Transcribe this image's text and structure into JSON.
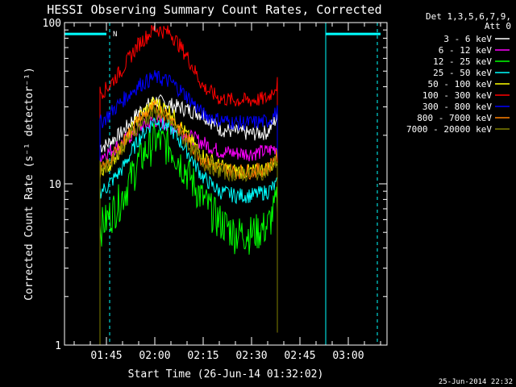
{
  "chart_data": {
    "type": "line",
    "title": "HESSI Observing Summary Count Rates, Corrected",
    "xlabel": "Start Time (26-Jun-14 01:32:02)",
    "ylabel": "Corrected Count Rate (s⁻¹ detector⁻¹)",
    "y_scale": "log",
    "ylim": [
      1,
      100
    ],
    "xlim": [
      "01:32",
      "03:12"
    ],
    "x_ticks": [
      "01:45",
      "02:00",
      "02:15",
      "02:30",
      "02:45",
      "03:00"
    ],
    "y_ticks": [
      "1",
      "10",
      "100"
    ],
    "footer": "25-Jun-2014 22:32",
    "legend": {
      "placement": "right",
      "header": [
        "Det 1,3,5,6,7,9,",
        "Att 0"
      ]
    },
    "series": [
      {
        "name": "3 - 6 keV",
        "color": "#ffffff",
        "x": [
          "01:43",
          "01:45",
          "01:50",
          "01:55",
          "02:00",
          "02:05",
          "02:10",
          "02:15",
          "02:20",
          "02:25",
          "02:30",
          "02:35",
          "02:38"
        ],
        "y": [
          17,
          17.5,
          21,
          28,
          33,
          31,
          29,
          27,
          22,
          21,
          20.5,
          21,
          26
        ]
      },
      {
        "name": "6 - 12 keV",
        "color": "#ff00ff",
        "x": [
          "01:43",
          "01:45",
          "01:50",
          "01:55",
          "02:00",
          "02:05",
          "02:10",
          "02:15",
          "02:20",
          "02:25",
          "02:30",
          "02:35",
          "02:38"
        ],
        "y": [
          15,
          15.5,
          18,
          22,
          25,
          23,
          20,
          18,
          16,
          15.5,
          15.5,
          16,
          17
        ]
      },
      {
        "name": "12 - 25 keV",
        "color": "#00ff00",
        "x": [
          "01:43",
          "01:45",
          "01:50",
          "01:55",
          "02:00",
          "02:05",
          "02:10",
          "02:15",
          "02:20",
          "02:25",
          "02:30",
          "02:35",
          "02:38"
        ],
        "y": [
          5.5,
          6,
          8.5,
          14,
          19,
          17,
          12,
          8,
          6,
          5,
          5,
          5.5,
          8
        ]
      },
      {
        "name": "25 - 50 keV",
        "color": "#00ffff",
        "x": [
          "01:43",
          "01:45",
          "01:50",
          "01:55",
          "02:00",
          "02:05",
          "02:10",
          "02:15",
          "02:20",
          "02:25",
          "02:30",
          "02:35",
          "02:38"
        ],
        "y": [
          9,
          9.5,
          12.5,
          19,
          25,
          22,
          16,
          11,
          9,
          8.5,
          8.5,
          9,
          10
        ]
      },
      {
        "name": "50 - 100 keV",
        "color": "#ffff00",
        "x": [
          "01:43",
          "01:45",
          "01:50",
          "01:55",
          "02:00",
          "02:05",
          "02:10",
          "02:15",
          "02:20",
          "02:25",
          "02:30",
          "02:35",
          "02:38"
        ],
        "y": [
          12,
          12.5,
          17,
          26,
          32,
          28,
          20,
          15,
          13,
          12,
          12,
          12.5,
          14
        ]
      },
      {
        "name": "100 - 300 keV",
        "color": "#ff0000",
        "x": [
          "01:43",
          "01:45",
          "01:50",
          "01:55",
          "02:00",
          "02:05",
          "02:10",
          "02:15",
          "02:20",
          "02:25",
          "02:30",
          "02:35",
          "02:38"
        ],
        "y": [
          37,
          39,
          52,
          74,
          92,
          86,
          62,
          40,
          34,
          33,
          33,
          34,
          42
        ]
      },
      {
        "name": "300 - 800 keV",
        "color": "#0000ff",
        "x": [
          "01:43",
          "01:45",
          "01:50",
          "01:55",
          "02:00",
          "02:05",
          "02:10",
          "02:15",
          "02:20",
          "02:25",
          "02:30",
          "02:35",
          "02:38"
        ],
        "y": [
          24,
          26,
          33,
          41,
          46,
          43,
          35,
          27,
          25,
          24,
          24,
          24.5,
          28
        ]
      },
      {
        "name": "800 - 7000 keV",
        "color": "#ff8000",
        "x": [
          "01:43",
          "01:45",
          "01:50",
          "01:55",
          "02:00",
          "02:05",
          "02:10",
          "02:15",
          "02:20",
          "02:25",
          "02:30",
          "02:35",
          "02:38"
        ],
        "y": [
          12,
          13,
          18,
          25,
          30,
          26,
          19,
          14,
          12.5,
          12,
          12,
          12.5,
          15
        ]
      },
      {
        "name": "7000 - 20000 keV",
        "color": "#808000",
        "x": [
          "01:43",
          "01:45",
          "01:50",
          "01:55",
          "02:00",
          "02:05",
          "02:10",
          "02:15",
          "02:20",
          "02:25",
          "02:30",
          "02:35",
          "02:38"
        ],
        "y": [
          12.5,
          13,
          17,
          23,
          28,
          24,
          18,
          13.5,
          12,
          11.5,
          11.5,
          12,
          14
        ]
      }
    ],
    "annotations": {
      "attenuator_bars": {
        "color": "#00ffff",
        "segments": [
          [
            "01:32",
            "01:45"
          ],
          [
            "02:53",
            "03:10"
          ]
        ],
        "level": 85
      },
      "night_markers": {
        "color": "#00ffff",
        "solid": [
          "01:32",
          "02:53"
        ],
        "dashed": [
          "01:46",
          "03:09"
        ],
        "label": "N",
        "label_at": "01:47"
      }
    }
  }
}
